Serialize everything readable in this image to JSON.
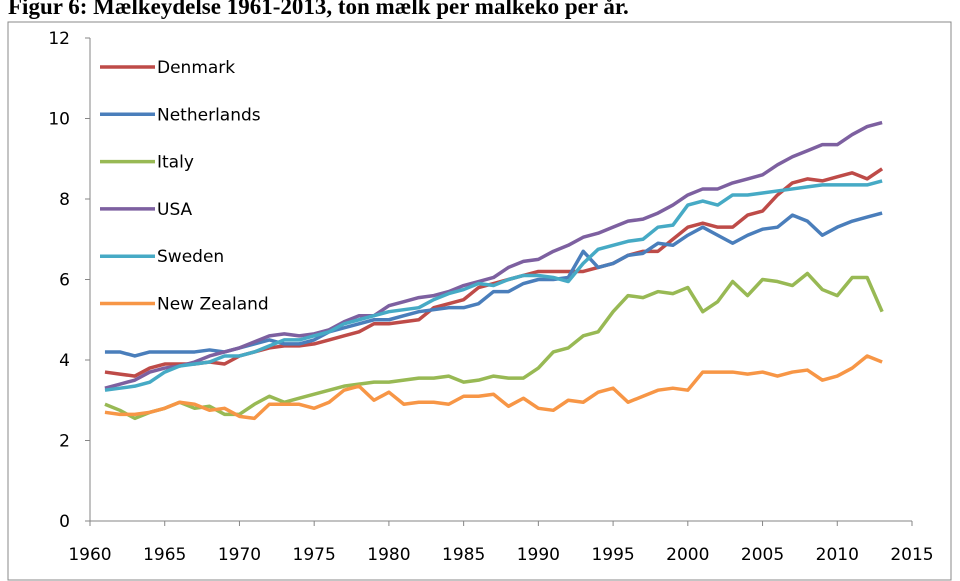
{
  "chart_data": {
    "type": "line",
    "title": "Figur 6: Mælkeydelse 1961-2013, ton mælk per malkeko per år.",
    "x": [
      1961,
      1962,
      1963,
      1964,
      1965,
      1966,
      1967,
      1968,
      1969,
      1970,
      1971,
      1972,
      1973,
      1974,
      1975,
      1976,
      1977,
      1978,
      1979,
      1980,
      1981,
      1982,
      1983,
      1984,
      1985,
      1986,
      1987,
      1988,
      1989,
      1990,
      1991,
      1992,
      1993,
      1994,
      1995,
      1996,
      1997,
      1998,
      1999,
      2000,
      2001,
      2002,
      2003,
      2004,
      2005,
      2006,
      2007,
      2008,
      2009,
      2010,
      2011,
      2012,
      2013
    ],
    "series": [
      {
        "name": "Denmark",
        "color": "#be4b48",
        "values": [
          3.7,
          3.65,
          3.6,
          3.8,
          3.9,
          3.9,
          3.9,
          3.95,
          3.9,
          4.1,
          4.2,
          4.3,
          4.35,
          4.35,
          4.4,
          4.5,
          4.6,
          4.7,
          4.9,
          4.9,
          4.95,
          5.0,
          5.3,
          5.4,
          5.5,
          5.8,
          5.9,
          6.0,
          6.1,
          6.2,
          6.2,
          6.2,
          6.2,
          6.3,
          6.4,
          6.6,
          6.7,
          6.7,
          7.0,
          7.3,
          7.4,
          7.3,
          7.3,
          7.6,
          7.7,
          8.1,
          8.4,
          8.5,
          8.45,
          8.55,
          8.65,
          8.5,
          8.75
        ]
      },
      {
        "name": "Netherlands",
        "color": "#4a7ebb",
        "values": [
          4.2,
          4.2,
          4.1,
          4.2,
          4.2,
          4.2,
          4.2,
          4.25,
          4.2,
          4.3,
          4.4,
          4.5,
          4.4,
          4.4,
          4.5,
          4.7,
          4.8,
          4.9,
          5.0,
          5.0,
          5.1,
          5.2,
          5.25,
          5.3,
          5.3,
          5.4,
          5.7,
          5.7,
          5.9,
          6.0,
          6.0,
          6.05,
          6.7,
          6.3,
          6.4,
          6.6,
          6.65,
          6.9,
          6.85,
          7.1,
          7.3,
          7.1,
          6.9,
          7.1,
          7.25,
          7.3,
          7.6,
          7.45,
          7.1,
          7.3,
          7.45,
          7.55,
          7.65
        ]
      },
      {
        "name": "Italy",
        "color": "#98b954",
        "values": [
          2.9,
          2.75,
          2.55,
          2.7,
          2.8,
          2.95,
          2.8,
          2.85,
          2.65,
          2.65,
          2.9,
          3.1,
          2.95,
          3.05,
          3.15,
          3.25,
          3.35,
          3.4,
          3.45,
          3.45,
          3.5,
          3.55,
          3.55,
          3.6,
          3.45,
          3.5,
          3.6,
          3.55,
          3.55,
          3.8,
          4.2,
          4.3,
          4.6,
          4.7,
          5.2,
          5.6,
          5.55,
          5.7,
          5.65,
          5.8,
          5.2,
          5.45,
          5.95,
          5.6,
          6.0,
          5.95,
          5.85,
          6.15,
          5.75,
          5.6,
          6.05,
          6.05,
          5.2
        ]
      },
      {
        "name": "USA",
        "color": "#7d60a0",
        "values": [
          3.3,
          3.4,
          3.5,
          3.7,
          3.8,
          3.85,
          3.95,
          4.1,
          4.2,
          4.3,
          4.45,
          4.6,
          4.65,
          4.6,
          4.65,
          4.75,
          4.95,
          5.1,
          5.1,
          5.35,
          5.45,
          5.55,
          5.6,
          5.7,
          5.85,
          5.95,
          6.05,
          6.3,
          6.45,
          6.5,
          6.7,
          6.85,
          7.05,
          7.15,
          7.3,
          7.45,
          7.5,
          7.65,
          7.85,
          8.1,
          8.25,
          8.25,
          8.4,
          8.5,
          8.6,
          8.85,
          9.05,
          9.2,
          9.35,
          9.35,
          9.6,
          9.8,
          9.9
        ]
      },
      {
        "name": "Sweden",
        "color": "#46aac5",
        "values": [
          3.25,
          3.3,
          3.35,
          3.45,
          3.7,
          3.85,
          3.9,
          3.95,
          4.1,
          4.1,
          4.2,
          4.35,
          4.5,
          4.5,
          4.6,
          4.7,
          4.9,
          5.0,
          5.1,
          5.2,
          5.25,
          5.3,
          5.5,
          5.65,
          5.75,
          5.9,
          5.85,
          6.0,
          6.1,
          6.1,
          6.05,
          5.95,
          6.4,
          6.75,
          6.85,
          6.95,
          7.0,
          7.3,
          7.35,
          7.85,
          7.95,
          7.85,
          8.1,
          8.1,
          8.15,
          8.2,
          8.25,
          8.3,
          8.35,
          8.35,
          8.35,
          8.35,
          8.45
        ]
      },
      {
        "name": "New Zealand",
        "color": "#f79646",
        "values": [
          2.7,
          2.65,
          2.65,
          2.7,
          2.8,
          2.95,
          2.9,
          2.75,
          2.8,
          2.6,
          2.55,
          2.9,
          2.9,
          2.9,
          2.8,
          2.95,
          3.25,
          3.35,
          3.0,
          3.2,
          2.9,
          2.95,
          2.95,
          2.9,
          3.1,
          3.1,
          3.15,
          2.85,
          3.05,
          2.8,
          2.75,
          3.0,
          2.95,
          3.2,
          3.3,
          2.95,
          3.1,
          3.25,
          3.3,
          3.25,
          3.7,
          3.7,
          3.7,
          3.65,
          3.7,
          3.6,
          3.7,
          3.75,
          3.5,
          3.6,
          3.8,
          4.1,
          3.95
        ]
      }
    ],
    "xlim": [
      1960,
      2015
    ],
    "xticks": [
      1960,
      1965,
      1970,
      1975,
      1980,
      1985,
      1990,
      1995,
      2000,
      2005,
      2010,
      2015
    ],
    "ylim": [
      0,
      12
    ],
    "yticks": [
      0,
      2,
      4,
      6,
      8,
      10,
      12
    ],
    "grid": false,
    "legend": "upper-left"
  }
}
